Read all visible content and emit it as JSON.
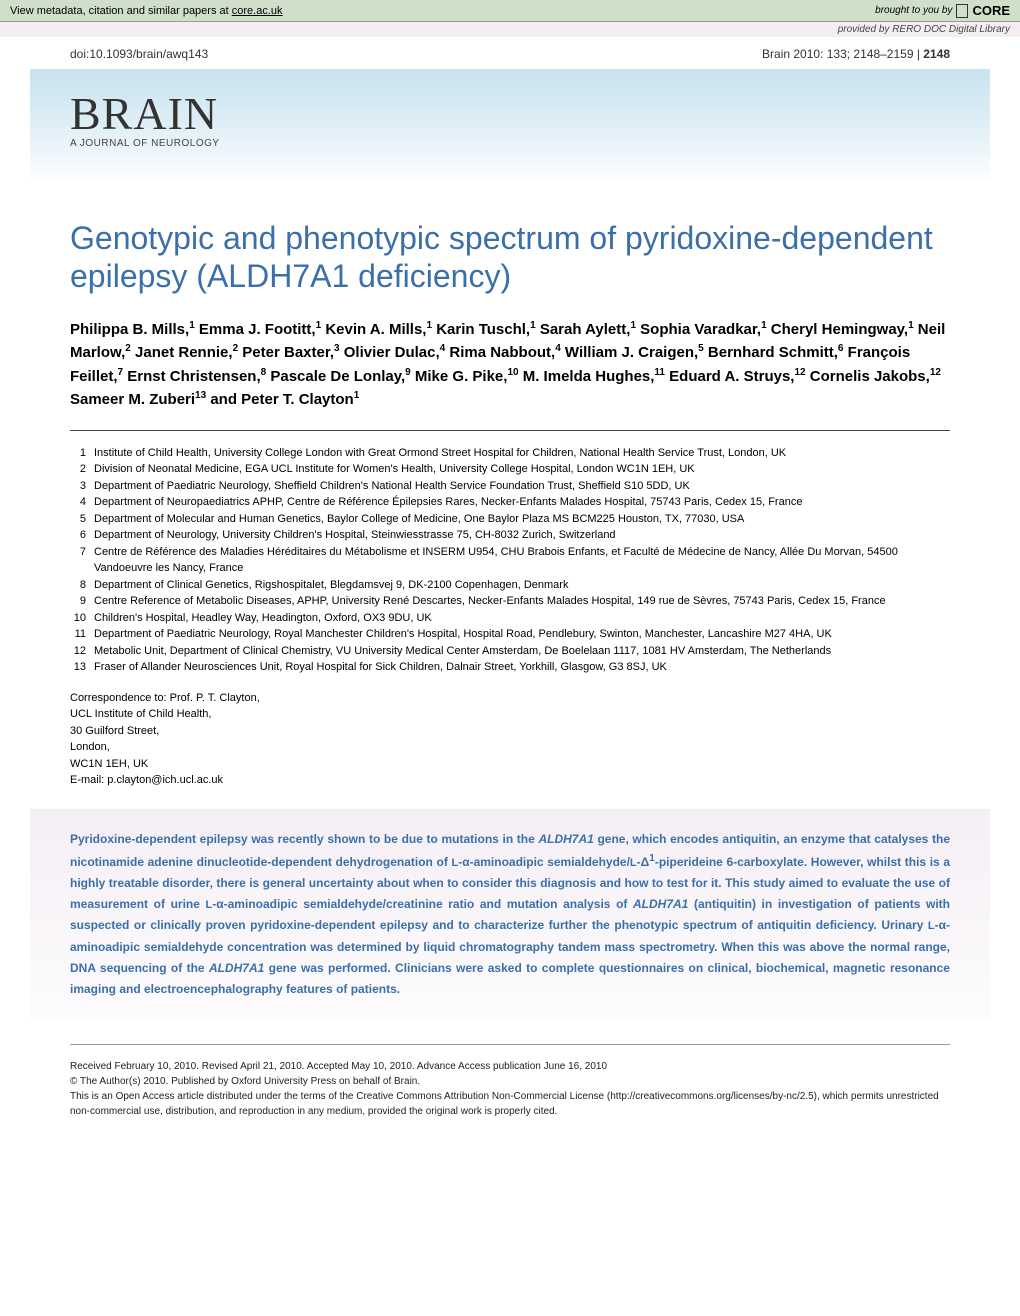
{
  "core_banner": {
    "left_text": "View metadata, citation and similar papers at ",
    "core_link": "core.ac.uk",
    "brought_by": "brought to you by",
    "core_label": "CORE"
  },
  "provided_by": "provided by RERO DOC Digital Library",
  "topbar": {
    "doi": "doi:10.1093/brain/awq143",
    "citation_left": "Brain 2010: 133; 2148–2159",
    "sep": " | ",
    "page": "2148"
  },
  "journal": {
    "name": "BRAIN",
    "subtitle": "A JOURNAL OF NEUROLOGY"
  },
  "title": "Genotypic and phenotypic spectrum of pyridoxine-dependent epilepsy (ALDH7A1 deficiency)",
  "authors_html": "Philippa B. Mills,<sup>1</sup> Emma J. Footitt,<sup>1</sup> Kevin A. Mills,<sup>1</sup> Karin Tuschl,<sup>1</sup> Sarah Aylett,<sup>1</sup> Sophia Varadkar,<sup>1</sup> Cheryl Hemingway,<sup>1</sup> Neil Marlow,<sup>2</sup> Janet Rennie,<sup>2</sup> Peter Baxter,<sup>3</sup> Olivier Dulac,<sup>4</sup> Rima Nabbout,<sup>4</sup> William J. Craigen,<sup>5</sup> Bernhard Schmitt,<sup>6</sup> François Feillet,<sup>7</sup> Ernst Christensen,<sup>8</sup> Pascale De Lonlay,<sup>9</sup> Mike G. Pike,<sup>10</sup> M. Imelda Hughes,<sup>11</sup> Eduard A. Struys,<sup>12</sup> Cornelis Jakobs,<sup>12</sup> Sameer M. Zuberi<sup>13</sup> and Peter T. Clayton<sup>1</sup>",
  "affiliations": [
    {
      "n": "1",
      "t": "Institute of Child Health, University College London with Great Ormond Street Hospital for Children, National Health Service Trust, London, UK"
    },
    {
      "n": "2",
      "t": "Division of Neonatal Medicine, EGA UCL Institute for Women's Health, University College Hospital, London WC1N 1EH, UK"
    },
    {
      "n": "3",
      "t": "Department of Paediatric Neurology, Sheffield Children's National Health Service Foundation Trust, Sheffield S10 5DD, UK"
    },
    {
      "n": "4",
      "t": "Department of Neuropaediatrics APHP, Centre de Référence Épilepsies Rares, Necker-Enfants Malades Hospital, 75743 Paris, Cedex 15, France"
    },
    {
      "n": "5",
      "t": "Department of Molecular and Human Genetics, Baylor College of Medicine, One Baylor Plaza MS BCM225 Houston, TX, 77030, USA"
    },
    {
      "n": "6",
      "t": "Department of Neurology, University Children's Hospital, Steinwiesstrasse 75, CH-8032 Zurich, Switzerland"
    },
    {
      "n": "7",
      "t": "Centre de Référence des Maladies Héréditaires du Métabolisme et INSERM U954, CHU Brabois Enfants, et Faculté de Médecine de Nancy, Allée Du Morvan, 54500 Vandoeuvre les Nancy, France"
    },
    {
      "n": "8",
      "t": "Department of Clinical Genetics, Rigshospitalet, Blegdamsvej 9, DK-2100 Copenhagen, Denmark"
    },
    {
      "n": "9",
      "t": "Centre Reference of Metabolic Diseases, APHP, University René Descartes, Necker-Enfants Malades Hospital, 149 rue de Sèvres, 75743 Paris, Cedex 15, France"
    },
    {
      "n": "10",
      "t": "Children's Hospital, Headley Way, Headington, Oxford, OX3 9DU, UK"
    },
    {
      "n": "11",
      "t": "Department of Paediatric Neurology, Royal Manchester Children's Hospital, Hospital Road, Pendlebury, Swinton, Manchester, Lancashire M27 4HA, UK"
    },
    {
      "n": "12",
      "t": "Metabolic Unit, Department of Clinical Chemistry, VU University Medical Center Amsterdam, De Boelelaan 1117, 1081 HV Amsterdam, The Netherlands"
    },
    {
      "n": "13",
      "t": "Fraser of Allander Neurosciences Unit, Royal Hospital for Sick Children, Dalnair Street, Yorkhill, Glasgow, G3 8SJ, UK"
    }
  ],
  "correspondence": [
    "Correspondence to: Prof. P. T. Clayton,",
    "UCL Institute of Child Health,",
    "30 Guilford Street,",
    "London,",
    "WC1N 1EH, UK",
    "E-mail: p.clayton@ich.ucl.ac.uk"
  ],
  "abstract_html": "Pyridoxine-dependent epilepsy was recently shown to be due to mutations in the <span class=\"gene\">ALDH7A1</span> gene, which encodes antiquitin, an enzyme that catalyses the nicotinamide adenine dinucleotide-dependent dehydrogenation of <span class=\"small-caps\">L</span>-α-aminoadipic semialdehyde/<span class=\"small-caps\">L</span>-Δ<sup>1</sup>-piperideine 6-carboxylate. However, whilst this is a highly treatable disorder, there is general uncertainty about when to consider this diagnosis and how to test for it. This study aimed to evaluate the use of measurement of urine <span class=\"small-caps\">L</span>-α-aminoadipic semialdehyde/creatinine ratio and mutation analysis of <span class=\"gene\">ALDH7A1</span> (antiquitin) in investigation of patients with suspected or clinically proven pyridoxine-dependent epilepsy and to characterize further the phenotypic spectrum of antiquitin deficiency. Urinary <span class=\"small-caps\">L</span>-α-aminoadipic semialdehyde concentration was determined by liquid chromatography tandem mass spectrometry. When this was above the normal range, DNA sequencing of the <span class=\"gene\">ALDH7A1</span> gene was performed. Clinicians were asked to complete questionnaires on clinical, biochemical, magnetic resonance imaging and electroencephalography features of patients.",
  "footer": {
    "received": "Received February 10, 2010. Revised April 21, 2010. Accepted May 10, 2010. Advance Access publication June 16, 2010",
    "copyright": "© The Author(s) 2010. Published by Oxford University Press on behalf of Brain.",
    "license": "This is an Open Access article distributed under the terms of the Creative Commons Attribution Non-Commercial License (http://creativecommons.org/licenses/by-nc/2.5), which permits unrestricted non-commercial use, distribution, and reproduction in any medium, provided the original work is properly cited."
  },
  "colors": {
    "accent_blue": "#3b6fa8",
    "band_blue_top": "#c8e3f0",
    "band_blue_bottom": "#fcfdfe",
    "band_purple": "#f4eff5",
    "core_bg": "#cfdfc9"
  }
}
